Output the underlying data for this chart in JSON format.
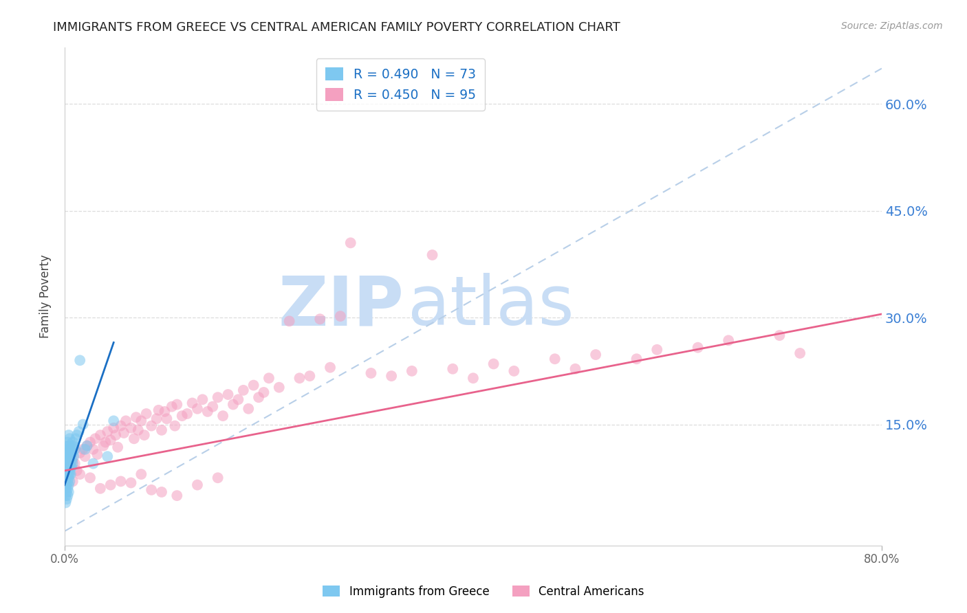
{
  "title": "IMMIGRANTS FROM GREECE VS CENTRAL AMERICAN FAMILY POVERTY CORRELATION CHART",
  "source": "Source: ZipAtlas.com",
  "ylabel": "Family Poverty",
  "ytick_labels": [
    "15.0%",
    "30.0%",
    "45.0%",
    "60.0%"
  ],
  "ytick_values": [
    0.15,
    0.3,
    0.45,
    0.6
  ],
  "xlim": [
    0.0,
    0.8
  ],
  "ylim": [
    -0.02,
    0.68
  ],
  "greece_R": 0.49,
  "greece_N": 73,
  "central_R": 0.45,
  "central_N": 95,
  "greece_color": "#7ec8f0",
  "central_color": "#f4a0c0",
  "greece_line_color": "#1a6fc4",
  "central_line_color": "#e8628c",
  "dashed_line_color": "#b8cfe8",
  "watermark_zip": "ZIP",
  "watermark_atlas": "atlas",
  "watermark_color": "#c8ddf5",
  "background_color": "#ffffff",
  "title_fontsize": 13,
  "axis_label_color": "#3a7fd4",
  "greece_line_x": [
    0.0,
    0.048
  ],
  "greece_line_y": [
    0.065,
    0.265
  ],
  "central_line_x": [
    0.0,
    0.8
  ],
  "central_line_y": [
    0.085,
    0.305
  ],
  "dashed_line_x": [
    0.0,
    0.8
  ],
  "dashed_line_y": [
    0.0,
    0.65
  ],
  "greece_scatter_x": [
    0.001,
    0.001,
    0.001,
    0.001,
    0.001,
    0.001,
    0.001,
    0.001,
    0.001,
    0.001,
    0.002,
    0.002,
    0.002,
    0.002,
    0.002,
    0.002,
    0.002,
    0.002,
    0.002,
    0.002,
    0.003,
    0.003,
    0.003,
    0.003,
    0.003,
    0.003,
    0.003,
    0.003,
    0.003,
    0.003,
    0.004,
    0.004,
    0.004,
    0.004,
    0.004,
    0.004,
    0.004,
    0.004,
    0.004,
    0.004,
    0.005,
    0.005,
    0.005,
    0.005,
    0.005,
    0.005,
    0.005,
    0.005,
    0.006,
    0.006,
    0.006,
    0.006,
    0.006,
    0.007,
    0.007,
    0.007,
    0.007,
    0.008,
    0.008,
    0.008,
    0.009,
    0.009,
    0.01,
    0.011,
    0.012,
    0.014,
    0.015,
    0.018,
    0.02,
    0.022,
    0.028,
    0.042,
    0.048
  ],
  "greece_scatter_y": [
    0.04,
    0.05,
    0.06,
    0.065,
    0.07,
    0.075,
    0.08,
    0.085,
    0.09,
    0.1,
    0.045,
    0.055,
    0.065,
    0.075,
    0.08,
    0.085,
    0.09,
    0.1,
    0.11,
    0.12,
    0.05,
    0.06,
    0.07,
    0.08,
    0.085,
    0.09,
    0.095,
    0.105,
    0.115,
    0.125,
    0.055,
    0.065,
    0.075,
    0.08,
    0.09,
    0.095,
    0.1,
    0.11,
    0.12,
    0.135,
    0.07,
    0.08,
    0.085,
    0.095,
    0.1,
    0.11,
    0.12,
    0.13,
    0.08,
    0.09,
    0.095,
    0.105,
    0.115,
    0.09,
    0.1,
    0.11,
    0.12,
    0.095,
    0.11,
    0.125,
    0.105,
    0.12,
    0.115,
    0.13,
    0.135,
    0.14,
    0.24,
    0.15,
    0.115,
    0.12,
    0.095,
    0.105,
    0.155
  ],
  "central_scatter_x": [
    0.005,
    0.008,
    0.01,
    0.012,
    0.015,
    0.018,
    0.02,
    0.022,
    0.025,
    0.028,
    0.03,
    0.032,
    0.035,
    0.038,
    0.04,
    0.042,
    0.045,
    0.048,
    0.05,
    0.052,
    0.055,
    0.058,
    0.06,
    0.065,
    0.068,
    0.07,
    0.072,
    0.075,
    0.078,
    0.08,
    0.085,
    0.09,
    0.092,
    0.095,
    0.098,
    0.1,
    0.105,
    0.108,
    0.11,
    0.115,
    0.12,
    0.125,
    0.13,
    0.135,
    0.14,
    0.145,
    0.15,
    0.155,
    0.16,
    0.165,
    0.17,
    0.175,
    0.18,
    0.185,
    0.19,
    0.195,
    0.2,
    0.21,
    0.22,
    0.23,
    0.24,
    0.25,
    0.26,
    0.27,
    0.28,
    0.3,
    0.32,
    0.34,
    0.36,
    0.38,
    0.4,
    0.42,
    0.44,
    0.48,
    0.5,
    0.52,
    0.56,
    0.58,
    0.62,
    0.65,
    0.7,
    0.72,
    0.008,
    0.015,
    0.025,
    0.035,
    0.045,
    0.055,
    0.065,
    0.075,
    0.085,
    0.095,
    0.11,
    0.13,
    0.15
  ],
  "central_scatter_y": [
    0.09,
    0.1,
    0.095,
    0.085,
    0.11,
    0.115,
    0.105,
    0.12,
    0.125,
    0.115,
    0.13,
    0.108,
    0.135,
    0.12,
    0.125,
    0.14,
    0.128,
    0.145,
    0.135,
    0.118,
    0.148,
    0.138,
    0.155,
    0.145,
    0.13,
    0.16,
    0.142,
    0.155,
    0.135,
    0.165,
    0.148,
    0.158,
    0.17,
    0.142,
    0.168,
    0.158,
    0.175,
    0.148,
    0.178,
    0.162,
    0.165,
    0.18,
    0.172,
    0.185,
    0.168,
    0.175,
    0.188,
    0.162,
    0.192,
    0.178,
    0.185,
    0.198,
    0.172,
    0.205,
    0.188,
    0.195,
    0.215,
    0.202,
    0.295,
    0.215,
    0.218,
    0.298,
    0.23,
    0.302,
    0.405,
    0.222,
    0.218,
    0.225,
    0.388,
    0.228,
    0.215,
    0.235,
    0.225,
    0.242,
    0.228,
    0.248,
    0.242,
    0.255,
    0.258,
    0.268,
    0.275,
    0.25,
    0.07,
    0.08,
    0.075,
    0.06,
    0.065,
    0.07,
    0.068,
    0.08,
    0.058,
    0.055,
    0.05,
    0.065,
    0.075
  ]
}
